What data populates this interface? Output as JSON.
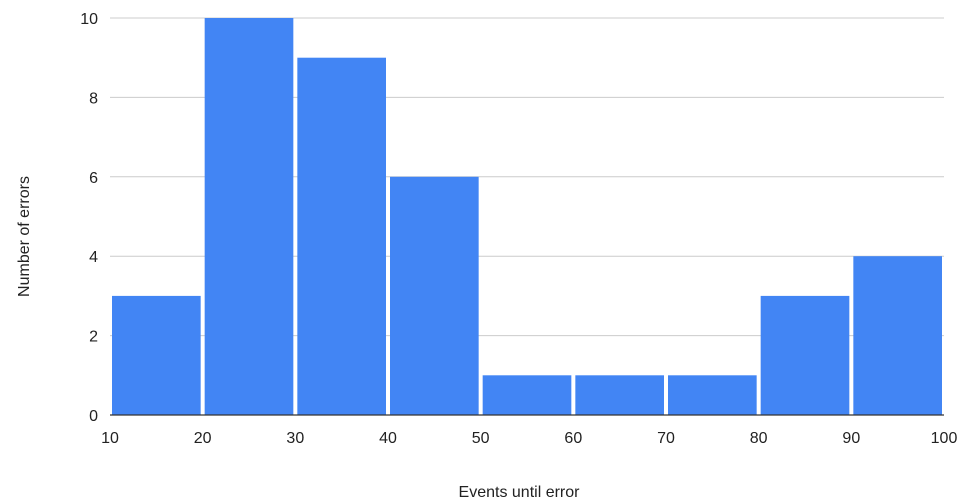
{
  "chart_data": {
    "type": "bar",
    "title": "",
    "xlabel": "Events until error",
    "ylabel": "Number of errors",
    "x_ticks": [
      10,
      20,
      30,
      40,
      50,
      60,
      70,
      80,
      90,
      100
    ],
    "y_ticks": [
      0,
      2,
      4,
      6,
      8,
      10
    ],
    "xlim": [
      10,
      100
    ],
    "ylim": [
      0,
      10
    ],
    "grid": true,
    "bins": [
      {
        "start": 10,
        "end": 20,
        "value": 3
      },
      {
        "start": 20,
        "end": 30,
        "value": 10
      },
      {
        "start": 30,
        "end": 40,
        "value": 9
      },
      {
        "start": 40,
        "end": 50,
        "value": 6
      },
      {
        "start": 50,
        "end": 60,
        "value": 1
      },
      {
        "start": 60,
        "end": 70,
        "value": 1
      },
      {
        "start": 70,
        "end": 80,
        "value": 1
      },
      {
        "start": 80,
        "end": 90,
        "value": 3
      },
      {
        "start": 90,
        "end": 100,
        "value": 4
      }
    ],
    "bar_color": "#4285f4"
  }
}
